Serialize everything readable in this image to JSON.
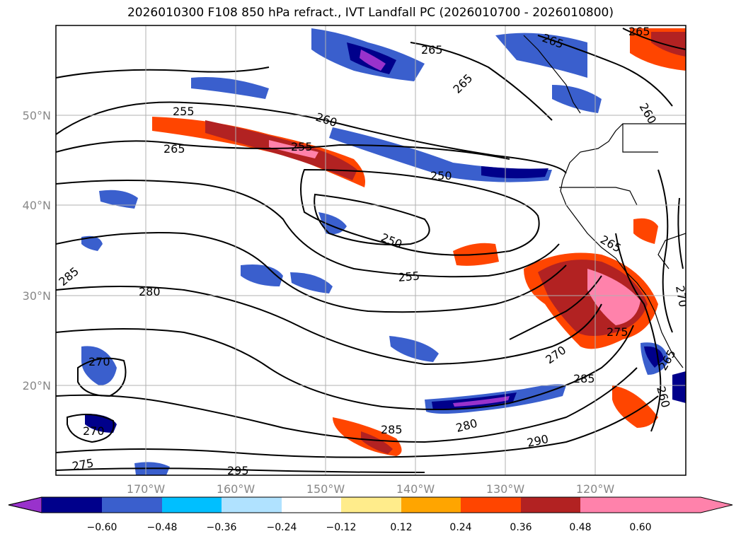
{
  "title": "2026010300 F108 850 hPa refract., IVT Landfall PC (2026010700 - 2026010800)",
  "map": {
    "lat_labels": [
      "50°N",
      "40°N",
      "30°N",
      "20°N"
    ],
    "lon_labels": [
      "170°W",
      "160°W",
      "150°W",
      "140°W",
      "130°W",
      "120°W"
    ],
    "contour_labels": [
      "255",
      "265",
      "260",
      "255",
      "250",
      "250",
      "255",
      "265",
      "265",
      "265",
      "265",
      "260",
      "285",
      "280",
      "270",
      "270",
      "275",
      "295",
      "285",
      "280",
      "290",
      "285",
      "270",
      "275",
      "265",
      "260",
      "270",
      "265"
    ],
    "grid_color": "#b0b0b0",
    "tick_color": "#888888"
  },
  "colorbar": {
    "colors": [
      "#9932CC",
      "#00008B",
      "#3A5FCD",
      "#00BFFF",
      "#B0E2FF",
      "#FFFFFF",
      "#FFEC8B",
      "#FFA500",
      "#FF4500",
      "#B22222",
      "#FF82AB"
    ],
    "tick_labels": [
      "−0.60",
      "−0.48",
      "−0.36",
      "−0.24",
      "−0.12",
      "0.12",
      "0.24",
      "0.36",
      "0.48",
      "0.60"
    ]
  }
}
